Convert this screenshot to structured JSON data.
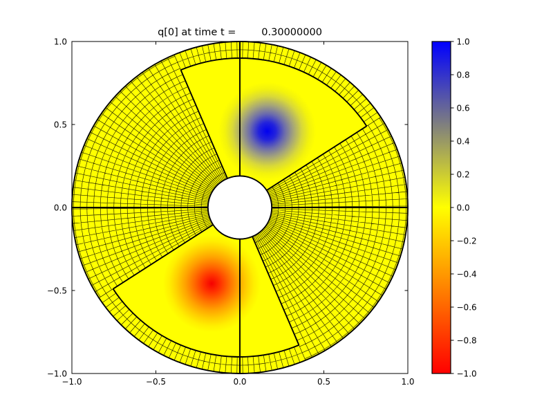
{
  "figure": {
    "background": "#ffffff",
    "text_color": "#000000"
  },
  "chart_data": {
    "type": "pcolor",
    "title": "q[0] at time t =        0.30000000",
    "field_name": "q[0]",
    "time": "0.30000000",
    "xlim": [
      -1.0,
      1.0
    ],
    "ylim": [
      -1.0,
      1.0
    ],
    "grid": false,
    "x_ticks": [
      {
        "v": -1.0,
        "label": "−1.0"
      },
      {
        "v": -0.5,
        "label": "−0.5"
      },
      {
        "v": 0.0,
        "label": "0.0"
      },
      {
        "v": 0.5,
        "label": "0.5"
      },
      {
        "v": 1.0,
        "label": "1.0"
      }
    ],
    "y_ticks": [
      {
        "v": 1.0,
        "label": "1.0"
      },
      {
        "v": 0.5,
        "label": "0.5"
      },
      {
        "v": 0.0,
        "label": "0.0"
      },
      {
        "v": -0.5,
        "label": "−0.5"
      },
      {
        "v": -1.0,
        "label": "−1.0"
      }
    ],
    "base_value": 0.0,
    "base_color": "#ffff00",
    "mesh_line_color": "#000000",
    "patch_border_color": "#000000",
    "annulus": {
      "inner_radius": 0.19,
      "outer_radius": 1.0
    },
    "coarse_mesh": {
      "dr": 0.04,
      "dtheta_deg": 2.5,
      "theta_ranges_deg": [
        [
          113,
          213
        ],
        [
          293,
          393
        ]
      ]
    },
    "refined_sectors_deg": [
      [
        33,
        113
      ],
      [
        213,
        293
      ]
    ],
    "sector_outer_radius": 0.9,
    "refined_band": {
      "mid_arc_radius": 0.95,
      "dtheta_deg": 2.0
    },
    "thick_spokes_deg": [
      0,
      90,
      180,
      270
    ],
    "blobs": [
      {
        "name": "positive-blob",
        "peak_value": 1.0,
        "center_x": 0.163,
        "center_y": 0.46,
        "radius": 0.29,
        "gradient": [
          {
            "offset": 0.0,
            "color": "#0000f0"
          },
          {
            "offset": 0.18,
            "color": "#2323dc"
          },
          {
            "offset": 0.36,
            "color": "#6c6cac"
          },
          {
            "offset": 0.54,
            "color": "#a6a678"
          },
          {
            "offset": 0.72,
            "color": "#d9d938"
          },
          {
            "offset": 0.87,
            "color": "#f3f30c"
          },
          {
            "offset": 1.0,
            "color": "#ffff00"
          }
        ]
      },
      {
        "name": "negative-blob",
        "peak_value": -1.0,
        "center_x": -0.168,
        "center_y": -0.458,
        "radius": 0.29,
        "gradient": [
          {
            "offset": 0.0,
            "color": "#f60000"
          },
          {
            "offset": 0.18,
            "color": "#ff3200"
          },
          {
            "offset": 0.36,
            "color": "#ff6c00"
          },
          {
            "offset": 0.54,
            "color": "#ffa200"
          },
          {
            "offset": 0.72,
            "color": "#ffcf00"
          },
          {
            "offset": 0.87,
            "color": "#ffef00"
          },
          {
            "offset": 1.0,
            "color": "#ffff00"
          }
        ]
      }
    ],
    "colorbar": {
      "min": -1.0,
      "max": 1.0,
      "ticks": [
        {
          "v": 1.0,
          "label": "1.0"
        },
        {
          "v": 0.8,
          "label": "0.8"
        },
        {
          "v": 0.6,
          "label": "0.6"
        },
        {
          "v": 0.4,
          "label": "0.4"
        },
        {
          "v": 0.2,
          "label": "0.2"
        },
        {
          "v": 0.0,
          "label": "0.0"
        },
        {
          "v": -0.2,
          "label": "−0.2"
        },
        {
          "v": -0.4,
          "label": "−0.4"
        },
        {
          "v": -0.6,
          "label": "−0.6"
        },
        {
          "v": -0.8,
          "label": "−0.8"
        },
        {
          "v": -1.0,
          "label": "−1.0"
        }
      ],
      "stops": [
        {
          "v": 1.0,
          "color": "#0000ff"
        },
        {
          "v": 0.5,
          "color": "#7f7f7f"
        },
        {
          "v": 0.0,
          "color": "#ffff00"
        },
        {
          "v": -0.5,
          "color": "#ff7f00"
        },
        {
          "v": -1.0,
          "color": "#ff0000"
        }
      ]
    }
  }
}
